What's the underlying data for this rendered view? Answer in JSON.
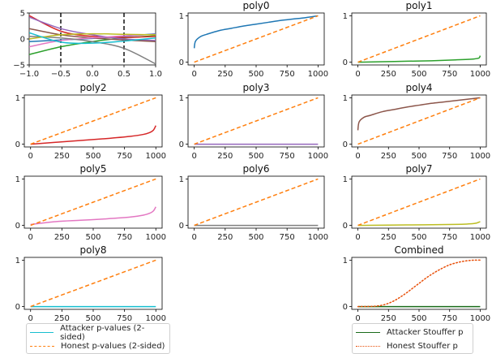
{
  "colors": {
    "attacker": "#17becf",
    "honest": "#ff7f0e",
    "stouffer_attacker": "#1a6b1a",
    "stouffer_honest": "#e8500a",
    "poly0": "#1f77b4",
    "poly1": "#2ca02c",
    "poly2": "#d62728",
    "poly3": "#9467bd",
    "poly4": "#8c564b",
    "poly5": "#e377c2",
    "poly6": "#7f7f7f",
    "poly7": "#bcbd22",
    "poly8": "#17becf"
  },
  "legend_left": {
    "items": [
      {
        "label": "Attacker p-values (2-sided)",
        "color": "#17becf",
        "style": "solid"
      },
      {
        "label": "Honest p-values (2-sided)",
        "color": "#ff7f0e",
        "style": "dashed"
      }
    ]
  },
  "legend_right": {
    "items": [
      {
        "label": "Attacker Stouffer p",
        "color": "#1a6b1a",
        "style": "solid"
      },
      {
        "label": "Honest Stouffer p",
        "color": "#e8500a",
        "style": "dotted"
      }
    ]
  },
  "chart_data": [
    {
      "type": "line",
      "title": "",
      "xlim": [
        -1,
        1
      ],
      "ylim": [
        -5,
        5
      ],
      "xticks": [
        -1.0,
        -0.5,
        0.0,
        0.5,
        1.0
      ],
      "xtick_labels": [
        "−1.0",
        "−0.5",
        "0.0",
        "0.5",
        "1.0"
      ],
      "yticks": [
        -5,
        0,
        5
      ],
      "ytick_labels": [
        "−5",
        "0",
        "5"
      ],
      "vlines": [
        -0.5,
        0.5
      ],
      "series": [
        {
          "color": "#1f77b4",
          "x": [
            -1,
            -0.5,
            0,
            0.5,
            1
          ],
          "y": [
            -0.5,
            -0.2,
            0.1,
            0.5,
            1.0
          ]
        },
        {
          "color": "#2ca02c",
          "x": [
            -1,
            -0.5,
            0,
            0.5,
            1
          ],
          "y": [
            -3.0,
            -1.5,
            -0.5,
            0.2,
            0.6
          ]
        },
        {
          "color": "#d62728",
          "x": [
            -1,
            -0.5,
            0,
            0.5,
            1
          ],
          "y": [
            4.5,
            1.5,
            0.5,
            0.3,
            0.5
          ]
        },
        {
          "color": "#9467bd",
          "x": [
            -1,
            -0.5,
            0,
            0.5,
            1
          ],
          "y": [
            4.2,
            2.0,
            0.8,
            0.0,
            -0.3
          ]
        },
        {
          "color": "#8c564b",
          "x": [
            -1,
            -0.5,
            0,
            0.5,
            1
          ],
          "y": [
            2.0,
            0.8,
            0.2,
            -0.2,
            -0.5
          ]
        },
        {
          "color": "#e377c2",
          "x": [
            -1,
            -0.5,
            0,
            0.5,
            1
          ],
          "y": [
            -1.5,
            -0.3,
            0.2,
            0.6,
            0.9
          ]
        },
        {
          "color": "#7f7f7f",
          "x": [
            -1,
            -0.5,
            0,
            0.5,
            1
          ],
          "y": [
            0.5,
            0.2,
            -0.5,
            -1.8,
            -4.8
          ]
        },
        {
          "color": "#bcbd22",
          "x": [
            -1,
            -0.5,
            0,
            0.5,
            1
          ],
          "y": [
            0.0,
            0.8,
            1.0,
            0.9,
            0.8
          ]
        },
        {
          "color": "#17becf",
          "x": [
            -1,
            -0.5,
            0,
            0.5,
            1
          ],
          "y": [
            1.2,
            -0.6,
            -0.8,
            -0.4,
            0.2
          ]
        }
      ]
    },
    {
      "type": "line",
      "title": "poly0",
      "xlim": [
        0,
        1000
      ],
      "ylim": [
        0,
        1
      ],
      "series": [
        {
          "color": "#1f77b4",
          "style": "solid",
          "x": [
            0,
            10,
            50,
            100,
            200,
            300,
            400,
            500,
            600,
            700,
            800,
            900,
            1000
          ],
          "y": [
            0.3,
            0.45,
            0.55,
            0.6,
            0.68,
            0.73,
            0.78,
            0.82,
            0.86,
            0.9,
            0.93,
            0.96,
            1.0
          ]
        },
        {
          "color": "#ff7f0e",
          "style": "dashed",
          "x": [
            0,
            1000
          ],
          "y": [
            0,
            1
          ]
        }
      ]
    },
    {
      "type": "line",
      "title": "poly1",
      "xlim": [
        0,
        1000
      ],
      "ylim": [
        0,
        1
      ],
      "series": [
        {
          "color": "#2ca02c",
          "style": "solid",
          "x": [
            0,
            200,
            400,
            600,
            800,
            950,
            990,
            1000
          ],
          "y": [
            0.0,
            0.01,
            0.02,
            0.03,
            0.05,
            0.07,
            0.09,
            0.14
          ]
        },
        {
          "color": "#ff7f0e",
          "style": "dashed",
          "x": [
            0,
            1000
          ],
          "y": [
            0,
            1
          ]
        }
      ]
    },
    {
      "type": "line",
      "title": "poly2",
      "xlim": [
        0,
        1000
      ],
      "ylim": [
        0,
        1
      ],
      "series": [
        {
          "color": "#d62728",
          "style": "solid",
          "x": [
            0,
            200,
            400,
            600,
            800,
            900,
            950,
            980,
            1000
          ],
          "y": [
            0.0,
            0.04,
            0.08,
            0.12,
            0.17,
            0.21,
            0.25,
            0.3,
            0.4
          ]
        },
        {
          "color": "#ff7f0e",
          "style": "dashed",
          "x": [
            0,
            1000
          ],
          "y": [
            0,
            1
          ]
        }
      ]
    },
    {
      "type": "line",
      "title": "poly3",
      "xlim": [
        0,
        1000
      ],
      "ylim": [
        0,
        1
      ],
      "series": [
        {
          "color": "#9467bd",
          "style": "solid",
          "x": [
            0,
            1000
          ],
          "y": [
            0.0,
            0.0
          ]
        },
        {
          "color": "#ff7f0e",
          "style": "dashed",
          "x": [
            0,
            1000
          ],
          "y": [
            0,
            1
          ]
        }
      ]
    },
    {
      "type": "line",
      "title": "poly4",
      "xlim": [
        0,
        1000
      ],
      "ylim": [
        0,
        1
      ],
      "series": [
        {
          "color": "#8c564b",
          "style": "solid",
          "x": [
            0,
            10,
            50,
            100,
            200,
            300,
            400,
            500,
            600,
            700,
            800,
            900,
            1000
          ],
          "y": [
            0.3,
            0.48,
            0.58,
            0.62,
            0.7,
            0.75,
            0.8,
            0.84,
            0.88,
            0.91,
            0.94,
            0.97,
            1.0
          ]
        },
        {
          "color": "#ff7f0e",
          "style": "dashed",
          "x": [
            0,
            1000
          ],
          "y": [
            0,
            1
          ]
        }
      ]
    },
    {
      "type": "line",
      "title": "poly5",
      "xlim": [
        0,
        1000
      ],
      "ylim": [
        0,
        1
      ],
      "series": [
        {
          "color": "#e377c2",
          "style": "solid",
          "x": [
            0,
            200,
            400,
            600,
            800,
            900,
            950,
            980,
            1000
          ],
          "y": [
            0.02,
            0.08,
            0.11,
            0.14,
            0.18,
            0.22,
            0.26,
            0.31,
            0.4
          ]
        },
        {
          "color": "#ff7f0e",
          "style": "dashed",
          "x": [
            0,
            1000
          ],
          "y": [
            0,
            1
          ]
        }
      ]
    },
    {
      "type": "line",
      "title": "poly6",
      "xlim": [
        0,
        1000
      ],
      "ylim": [
        0,
        1
      ],
      "series": [
        {
          "color": "#7f7f7f",
          "style": "solid",
          "x": [
            0,
            1000
          ],
          "y": [
            0.0,
            0.0
          ]
        },
        {
          "color": "#ff7f0e",
          "style": "dashed",
          "x": [
            0,
            1000
          ],
          "y": [
            0,
            1
          ]
        }
      ]
    },
    {
      "type": "line",
      "title": "poly7",
      "xlim": [
        0,
        1000
      ],
      "ylim": [
        0,
        1
      ],
      "series": [
        {
          "color": "#bcbd22",
          "style": "solid",
          "x": [
            0,
            400,
            800,
            950,
            1000
          ],
          "y": [
            0.0,
            0.01,
            0.02,
            0.04,
            0.08
          ]
        },
        {
          "color": "#ff7f0e",
          "style": "dashed",
          "x": [
            0,
            1000
          ],
          "y": [
            0,
            1
          ]
        }
      ]
    },
    {
      "type": "line",
      "title": "poly8",
      "xlim": [
        0,
        1000
      ],
      "ylim": [
        0,
        1
      ],
      "series": [
        {
          "color": "#17becf",
          "style": "solid",
          "x": [
            0,
            1000
          ],
          "y": [
            0.0,
            0.0
          ]
        },
        {
          "color": "#ff7f0e",
          "style": "dashed",
          "x": [
            0,
            1000
          ],
          "y": [
            0,
            1
          ]
        }
      ]
    },
    {
      "type": "line",
      "title": "Combined",
      "xlim": [
        0,
        1000
      ],
      "ylim": [
        0,
        1
      ],
      "series": [
        {
          "color": "#1a6b1a",
          "style": "solid",
          "x": [
            0,
            1000
          ],
          "y": [
            0.0,
            0.0
          ]
        },
        {
          "color": "#e8500a",
          "style": "dotted",
          "x": [
            0,
            100,
            150,
            200,
            250,
            300,
            350,
            400,
            450,
            500,
            550,
            600,
            650,
            700,
            750,
            800,
            850,
            900,
            950,
            1000
          ],
          "y": [
            0.0,
            0.003,
            0.01,
            0.03,
            0.07,
            0.13,
            0.21,
            0.3,
            0.4,
            0.5,
            0.6,
            0.69,
            0.77,
            0.84,
            0.9,
            0.94,
            0.97,
            0.99,
            1.0,
            1.0
          ]
        }
      ]
    }
  ]
}
